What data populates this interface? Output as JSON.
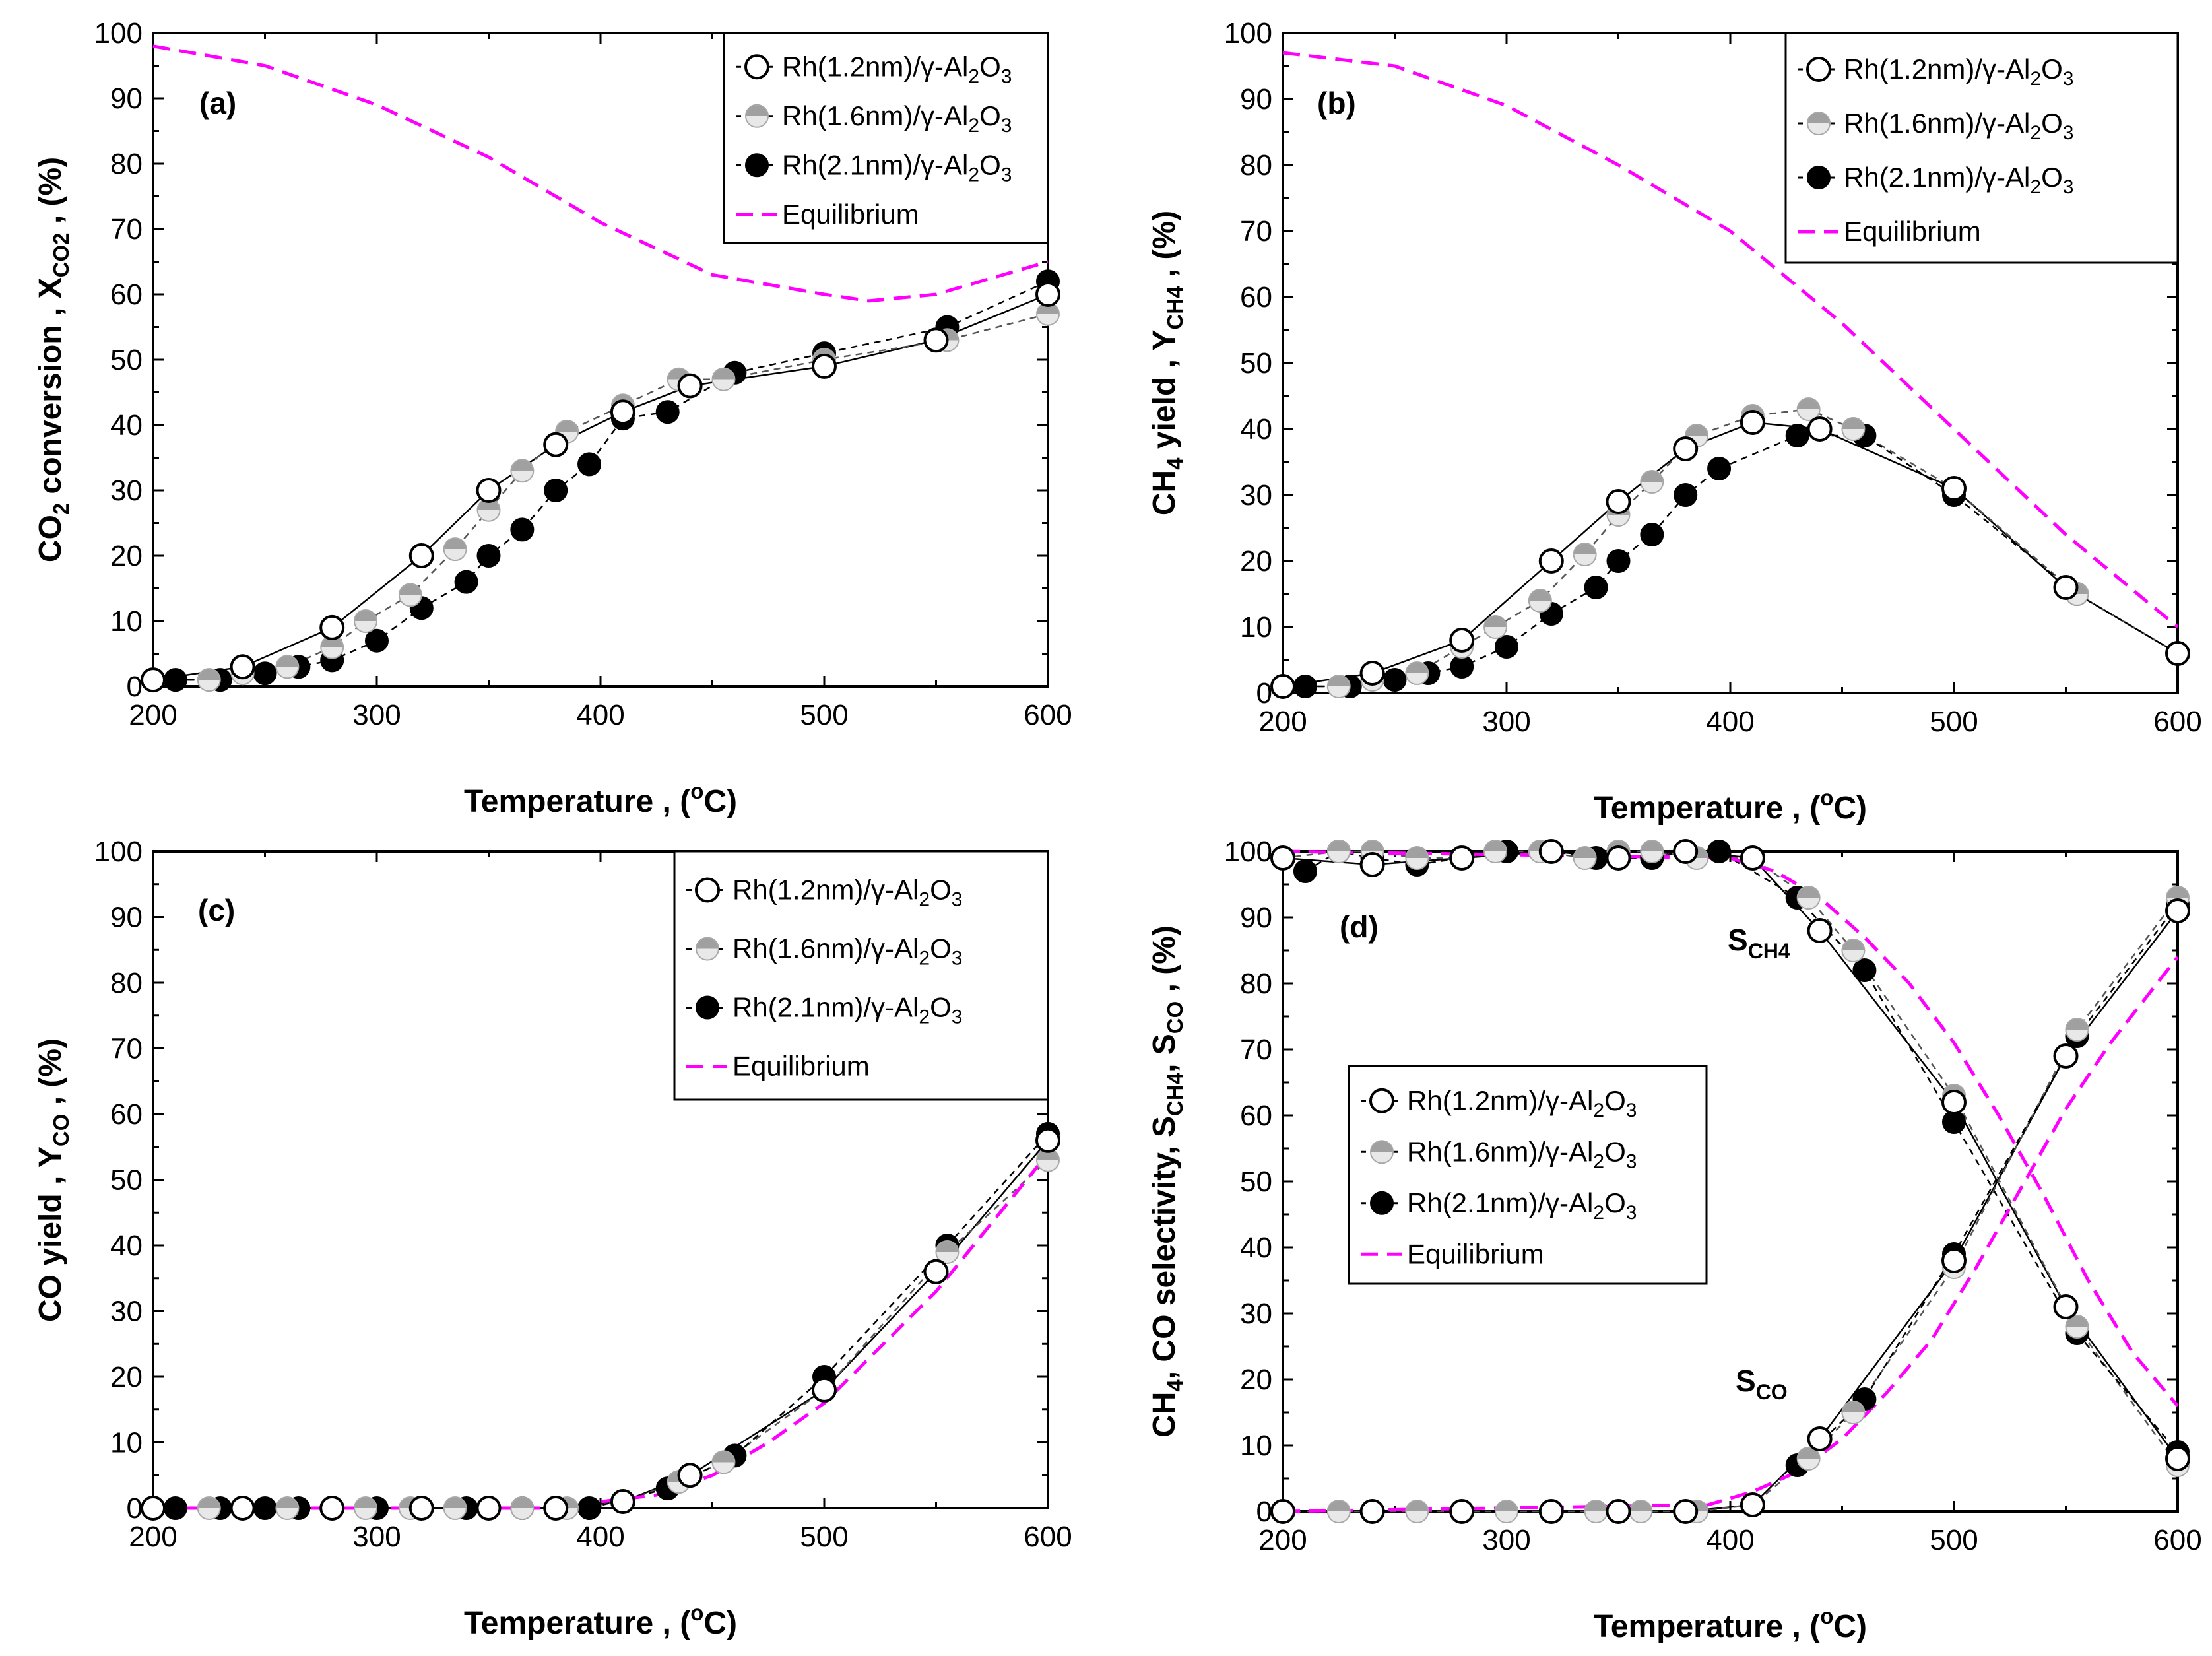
{
  "colors": {
    "equilibrium": "#ff00ff",
    "rh12_fill": "#ffffff",
    "rh16_top": "#a0a0a0",
    "rh16_bottom": "#e8e8e8",
    "rh21_fill": "#000000",
    "axis": "#000000"
  },
  "legend_labels": {
    "rh12_prefix": "Rh(1.2nm)/γ-Al",
    "rh16_prefix": "Rh(1.6nm)/γ-Al",
    "rh21_prefix": "Rh(2.1nm)/γ-Al",
    "al_sub": "2",
    "o_letter": "O",
    "o_sub": "3",
    "equilibrium": "Equilibrium"
  },
  "xlabel": {
    "text": "Temperature , (",
    "sup": "o",
    "unit": "C)"
  },
  "ylabels": {
    "a": {
      "p1": "CO",
      "s1": "2",
      "p2": " conversion , X",
      "s2": "CO2",
      "p3": " , (%)"
    },
    "b": {
      "p1": "CH",
      "s1": "4",
      "p2": " yield , Y",
      "s2": "CH4",
      "p3": " , (%)"
    },
    "c": {
      "p1": "CO yield , Y",
      "s1": "CO",
      "p2": " , (%)"
    },
    "d": {
      "p1": "CH",
      "s1": "4",
      "p2": ", CO selectivity, S",
      "s2": "CH4",
      "p3": ", S",
      "s3": "CO",
      "p4": " , (%)"
    }
  },
  "annotations": {
    "sch4_main": "S",
    "sch4_sub": "CH4",
    "sco_main": "S",
    "sco_sub": "CO"
  },
  "chart_data": [
    {
      "panel": "a",
      "panel_label": "(a)",
      "type": "line",
      "xlim": [
        200,
        600
      ],
      "ylim": [
        0,
        100
      ],
      "xticks": [
        200,
        300,
        400,
        500,
        600
      ],
      "yticks": [
        0,
        10,
        20,
        30,
        40,
        50,
        60,
        70,
        80,
        90,
        100
      ],
      "xlabel": "Temperature , (oC)",
      "ylabel": "CO2 conversion , XCO2 , (%)",
      "legend_position": "top-right",
      "series": [
        {
          "name": "Rh(1.2nm)/γ-Al2O3",
          "marker": "open",
          "x": [
            200,
            240,
            280,
            320,
            350,
            380,
            410,
            440,
            500,
            550,
            600
          ],
          "y": [
            1,
            3,
            9,
            20,
            30,
            37,
            42,
            46,
            49,
            53,
            60
          ]
        },
        {
          "name": "Rh(1.6nm)/γ-Al2O3",
          "marker": "half",
          "x": [
            200,
            225,
            240,
            260,
            280,
            295,
            315,
            335,
            350,
            365,
            385,
            410,
            435,
            455,
            500,
            555,
            600
          ],
          "y": [
            1,
            1,
            2,
            3,
            6,
            10,
            14,
            21,
            27,
            33,
            39,
            43,
            47,
            47,
            50,
            53,
            57
          ]
        },
        {
          "name": "Rh(2.1nm)/γ-Al2O3",
          "marker": "filled",
          "x": [
            210,
            230,
            250,
            265,
            280,
            300,
            320,
            340,
            350,
            365,
            380,
            395,
            410,
            430,
            460,
            500,
            555,
            600
          ],
          "y": [
            1,
            1,
            2,
            3,
            4,
            7,
            12,
            16,
            20,
            24,
            30,
            34,
            41,
            42,
            48,
            51,
            55,
            62
          ]
        },
        {
          "name": "Equilibrium",
          "marker": "none",
          "x": [
            200,
            250,
            300,
            350,
            400,
            450,
            500,
            520,
            550,
            600
          ],
          "y": [
            98,
            95,
            89,
            81,
            71,
            63,
            60,
            59,
            60,
            65
          ]
        }
      ]
    },
    {
      "panel": "b",
      "panel_label": "(b)",
      "type": "line",
      "xlim": [
        200,
        600
      ],
      "ylim": [
        0,
        100
      ],
      "xticks": [
        200,
        300,
        400,
        500,
        600
      ],
      "yticks": [
        0,
        10,
        20,
        30,
        40,
        50,
        60,
        70,
        80,
        90,
        100
      ],
      "xlabel": "Temperature , (oC)",
      "ylabel": "CH4 yield , YCH4 , (%)",
      "legend_position": "top-right",
      "series": [
        {
          "name": "Rh(1.2nm)/γ-Al2O3",
          "marker": "open",
          "x": [
            200,
            240,
            280,
            320,
            350,
            380,
            410,
            440,
            500,
            550,
            600
          ],
          "y": [
            1,
            3,
            8,
            20,
            29,
            37,
            41,
            40,
            31,
            16,
            6
          ]
        },
        {
          "name": "Rh(1.6nm)/γ-Al2O3",
          "marker": "half",
          "x": [
            200,
            225,
            240,
            260,
            280,
            295,
            315,
            335,
            350,
            365,
            385,
            410,
            435,
            455,
            500,
            555,
            600
          ],
          "y": [
            1,
            1,
            2,
            3,
            7,
            10,
            14,
            21,
            27,
            32,
            39,
            42,
            43,
            40,
            31,
            15,
            6
          ]
        },
        {
          "name": "Rh(2.1nm)/γ-Al2O3",
          "marker": "filled",
          "x": [
            210,
            230,
            250,
            265,
            280,
            300,
            320,
            340,
            350,
            365,
            380,
            395,
            430,
            460,
            500,
            555,
            600
          ],
          "y": [
            1,
            1,
            2,
            3,
            4,
            7,
            12,
            16,
            20,
            24,
            30,
            34,
            39,
            39,
            30,
            15,
            6
          ]
        },
        {
          "name": "Equilibrium",
          "marker": "none",
          "x": [
            200,
            250,
            300,
            350,
            400,
            450,
            500,
            550,
            600
          ],
          "y": [
            97,
            95,
            89,
            80,
            70,
            56,
            40,
            24,
            10
          ]
        }
      ]
    },
    {
      "panel": "c",
      "panel_label": "(c)",
      "type": "line",
      "xlim": [
        200,
        600
      ],
      "ylim": [
        0,
        100
      ],
      "xticks": [
        200,
        300,
        400,
        500,
        600
      ],
      "yticks": [
        0,
        10,
        20,
        30,
        40,
        50,
        60,
        70,
        80,
        90,
        100
      ],
      "xlabel": "Temperature , (oC)",
      "ylabel": "CO yield , YCO , (%)",
      "legend_position": "top-right",
      "series": [
        {
          "name": "Rh(1.2nm)/γ-Al2O3",
          "marker": "open",
          "x": [
            200,
            240,
            280,
            320,
            350,
            380,
            410,
            440,
            500,
            550,
            600
          ],
          "y": [
            0,
            0,
            0,
            0,
            0,
            0,
            1,
            5,
            18,
            36,
            56
          ]
        },
        {
          "name": "Rh(1.6nm)/γ-Al2O3",
          "marker": "half",
          "x": [
            200,
            225,
            240,
            260,
            280,
            295,
            315,
            335,
            350,
            365,
            385,
            410,
            435,
            455,
            500,
            555,
            600
          ],
          "y": [
            0,
            0,
            0,
            0,
            0,
            0,
            0,
            0,
            0,
            0,
            0,
            1,
            4,
            7,
            18,
            39,
            53
          ]
        },
        {
          "name": "Rh(2.1nm)/γ-Al2O3",
          "marker": "filled",
          "x": [
            210,
            230,
            250,
            265,
            280,
            300,
            320,
            340,
            350,
            365,
            380,
            395,
            430,
            460,
            500,
            555,
            600
          ],
          "y": [
            0,
            0,
            0,
            0,
            0,
            0,
            0,
            0,
            0,
            0,
            0,
            0,
            3,
            8,
            20,
            40,
            57
          ]
        },
        {
          "name": "Equilibrium",
          "marker": "none",
          "x": [
            200,
            300,
            380,
            400,
            425,
            450,
            475,
            500,
            550,
            600
          ],
          "y": [
            0,
            0,
            0,
            1,
            2,
            5,
            10,
            16,
            33,
            54
          ]
        }
      ]
    },
    {
      "panel": "d",
      "panel_label": "(d)",
      "type": "line",
      "xlim": [
        200,
        600
      ],
      "ylim": [
        0,
        100
      ],
      "xticks": [
        200,
        300,
        400,
        500,
        600
      ],
      "yticks": [
        0,
        10,
        20,
        30,
        40,
        50,
        60,
        70,
        80,
        90,
        100
      ],
      "xlabel": "Temperature , (oC)",
      "ylabel": "CH4, CO selectivity, SCH4, SCO , (%)",
      "legend_position": "center-left",
      "series": [
        {
          "name": "Rh(1.2nm)/γ-Al2O3",
          "group": "SCH4",
          "marker": "open",
          "x": [
            200,
            240,
            280,
            320,
            350,
            380,
            410,
            440,
            500,
            550,
            600
          ],
          "y": [
            99,
            98,
            99,
            100,
            99,
            100,
            99,
            88,
            62,
            31,
            8
          ]
        },
        {
          "name": "Rh(1.6nm)/γ-Al2O3",
          "group": "SCH4",
          "marker": "half",
          "x": [
            200,
            225,
            240,
            260,
            280,
            295,
            315,
            335,
            350,
            365,
            385,
            410,
            435,
            455,
            500,
            555,
            600
          ],
          "y": [
            99,
            100,
            100,
            99,
            99,
            100,
            100,
            99,
            100,
            100,
            99,
            99,
            93,
            85,
            63,
            28,
            7
          ]
        },
        {
          "name": "Rh(2.1nm)/γ-Al2O3",
          "group": "SCH4",
          "marker": "filled",
          "x": [
            210,
            225,
            240,
            260,
            280,
            300,
            320,
            340,
            365,
            380,
            395,
            430,
            460,
            500,
            555,
            600
          ],
          "y": [
            97,
            100,
            99,
            98,
            99,
            100,
            100,
            99,
            99,
            100,
            100,
            93,
            82,
            59,
            27,
            9
          ]
        },
        {
          "name": "Rh(1.2nm)/γ-Al2O3",
          "group": "SCO",
          "marker": "open",
          "x": [
            200,
            240,
            280,
            320,
            350,
            380,
            410,
            440,
            500,
            550,
            600
          ],
          "y": [
            0,
            0,
            0,
            0,
            0,
            0,
            1,
            11,
            38,
            69,
            91
          ]
        },
        {
          "name": "Rh(1.6nm)/γ-Al2O3",
          "group": "SCO",
          "marker": "half",
          "x": [
            200,
            225,
            240,
            260,
            280,
            300,
            320,
            340,
            360,
            385,
            410,
            435,
            455,
            500,
            555,
            600
          ],
          "y": [
            0,
            0,
            0,
            0,
            0,
            0,
            0,
            0,
            0,
            0,
            1,
            8,
            15,
            37,
            73,
            93
          ]
        },
        {
          "name": "Rh(2.1nm)/γ-Al2O3",
          "group": "SCO",
          "marker": "filled",
          "x": [
            430,
            460,
            500,
            555,
            600
          ],
          "y": [
            7,
            17,
            39,
            72,
            92
          ]
        },
        {
          "name": "Equilibrium",
          "group": "SCH4",
          "marker": "none",
          "x": [
            200,
            400,
            420,
            440,
            460,
            480,
            500,
            520,
            540,
            560,
            580,
            600
          ],
          "y": [
            100,
            99,
            97,
            93,
            87,
            80,
            71,
            60,
            48,
            35,
            24,
            16
          ]
        },
        {
          "name": "Equilibrium",
          "group": "SCO",
          "marker": "none",
          "x": [
            200,
            390,
            410,
            430,
            450,
            470,
            490,
            510,
            530,
            550,
            570,
            600
          ],
          "y": [
            0,
            1,
            3,
            6,
            11,
            18,
            26,
            37,
            49,
            61,
            71,
            84
          ]
        }
      ]
    }
  ]
}
